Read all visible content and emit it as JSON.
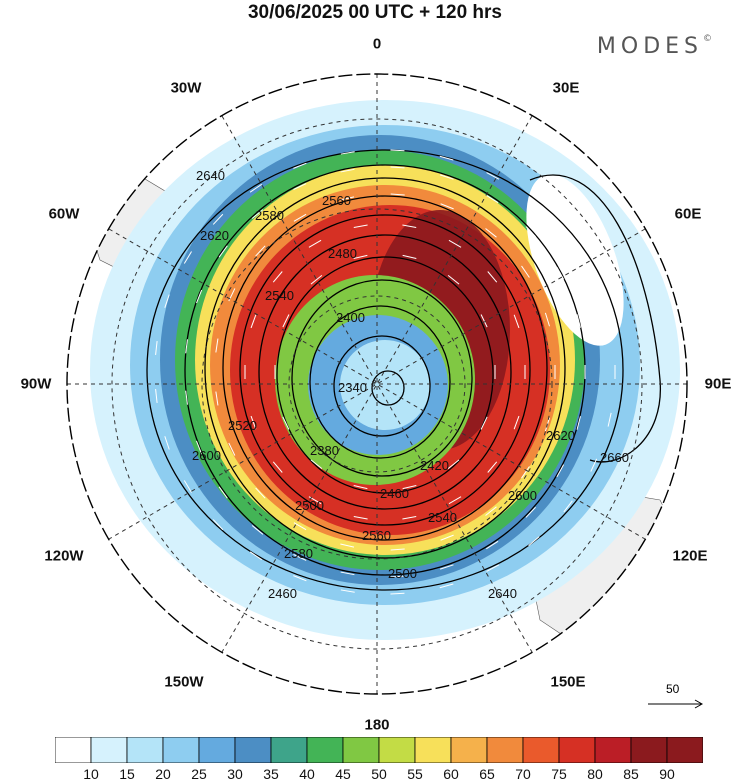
{
  "header": {
    "title": "30/06/2025  00 UTC  + 120 hrs",
    "brand": "MODES",
    "brand_mark": "©"
  },
  "map": {
    "projection": "south polar stereographic",
    "longitude_labels": {
      "top": "0",
      "bottom": "180",
      "left": "90W",
      "right": "90E",
      "ul1": "30W",
      "ul2": "60W",
      "ur1": "30E",
      "ur2": "60E",
      "ll1": "120W",
      "ll2": "150W",
      "lr1": "120E",
      "lr2": "150E"
    },
    "contour_labels": [
      "2640",
      "2620",
      "2600",
      "2580",
      "2560",
      "2540",
      "2520",
      "2500",
      "2480",
      "2460",
      "2420",
      "2400",
      "2380",
      "2340",
      "2660",
      "2640",
      "2620",
      "2600",
      "2580",
      "2560",
      "2540",
      "2500",
      "2460"
    ],
    "colors": {
      "land": "#efefef",
      "coast": "#333333",
      "contour": "#000000",
      "wind_arrow": "#ffffff"
    }
  },
  "reference_vector": {
    "label": "50"
  },
  "colorbar": {
    "labels": [
      "10",
      "15",
      "20",
      "25",
      "30",
      "35",
      "40",
      "45",
      "50",
      "55",
      "60",
      "65",
      "70",
      "75",
      "80",
      "85",
      "90"
    ],
    "colors": [
      "#ffffff",
      "#d6f2fd",
      "#b4e4f8",
      "#8ecdf0",
      "#64aadf",
      "#4c8ec4",
      "#3ea48a",
      "#43b456",
      "#80c843",
      "#c3dc45",
      "#f7e05a",
      "#f5b14b",
      "#f18a3c",
      "#ea5a2c",
      "#d63024",
      "#bb1e26",
      "#8b1a1e"
    ]
  }
}
